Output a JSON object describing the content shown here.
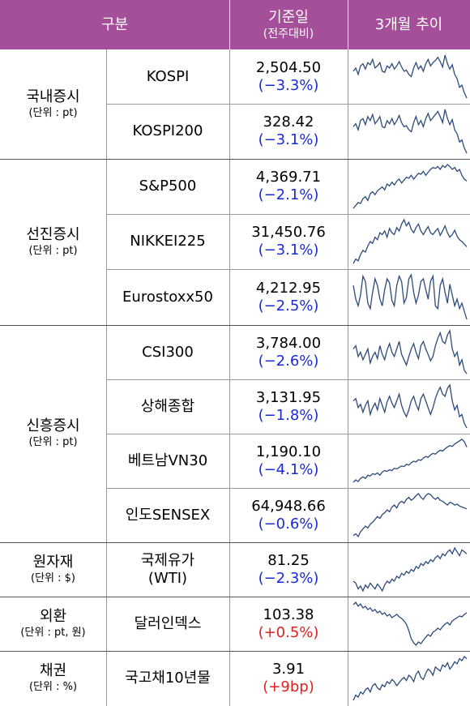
{
  "header": {
    "col_group": "구분",
    "col_value_line1": "기준일",
    "col_value_line2": "(전주대비)",
    "col_trend": "3개월 추이"
  },
  "groups": [
    {
      "title": "국내증시",
      "unit": "(단위 : pt)",
      "rows": [
        {
          "name": "KOSPI",
          "value": "2,504.50",
          "change": "(−3.3%)",
          "dir": "neg",
          "trend": [
            55,
            58,
            52,
            60,
            62,
            57,
            63,
            61,
            66,
            58,
            60,
            63,
            55,
            54,
            60,
            58,
            62,
            57,
            60,
            64,
            59,
            55,
            56,
            52,
            50,
            58,
            63,
            57,
            60,
            55,
            62,
            66,
            60,
            63,
            65,
            68,
            64,
            59,
            70,
            62,
            57,
            61,
            52,
            48,
            40,
            42,
            35,
            30
          ]
        },
        {
          "name": "KOSPI200",
          "value": "328.42",
          "change": "(−3.1%)",
          "dir": "neg",
          "trend": [
            54,
            57,
            51,
            60,
            62,
            56,
            64,
            60,
            66,
            57,
            60,
            64,
            54,
            53,
            60,
            57,
            62,
            56,
            60,
            65,
            58,
            54,
            55,
            51,
            49,
            58,
            64,
            56,
            60,
            54,
            62,
            67,
            60,
            63,
            66,
            69,
            64,
            58,
            71,
            62,
            56,
            61,
            51,
            47,
            39,
            41,
            33,
            28
          ]
        }
      ]
    },
    {
      "title": "선진증시",
      "unit": "(단위 : pt)",
      "rows": [
        {
          "name": "S&P500",
          "value": "4,369.71",
          "change": "(−2.1%)",
          "dir": "neg",
          "trend": [
            30,
            33,
            36,
            35,
            40,
            42,
            38,
            45,
            47,
            44,
            48,
            50,
            52,
            49,
            55,
            53,
            57,
            54,
            58,
            60,
            56,
            59,
            62,
            61,
            64,
            60,
            63,
            66,
            65,
            68,
            64,
            67,
            70,
            72,
            71,
            73,
            70,
            74,
            72,
            75,
            73,
            70,
            72,
            68,
            70,
            64,
            60,
            58
          ]
        },
        {
          "name": "NIKKEI225",
          "value": "31,450.76",
          "change": "(−3.1%)",
          "dir": "neg",
          "trend": [
            25,
            30,
            28,
            35,
            40,
            38,
            45,
            50,
            48,
            55,
            52,
            60,
            58,
            62,
            55,
            65,
            60,
            58,
            66,
            62,
            70,
            75,
            68,
            72,
            64,
            60,
            66,
            70,
            62,
            58,
            63,
            67,
            60,
            58,
            62,
            65,
            57,
            62,
            68,
            60,
            55,
            58,
            63,
            56,
            52,
            50,
            47,
            44
          ]
        },
        {
          "name": "Eurostoxx50",
          "value": "4,212.95",
          "change": "(−2.5%)",
          "dir": "neg",
          "trend": [
            55,
            45,
            40,
            48,
            62,
            58,
            42,
            38,
            50,
            60,
            55,
            45,
            40,
            52,
            60,
            57,
            44,
            40,
            55,
            62,
            58,
            42,
            46,
            60,
            63,
            50,
            42,
            48,
            58,
            60,
            52,
            45,
            58,
            62,
            40,
            38,
            55,
            60,
            50,
            42,
            56,
            48,
            40,
            45,
            38,
            42,
            36,
            30
          ]
        }
      ]
    },
    {
      "title": "신흥증시",
      "unit": "(단위 : pt)",
      "rows": [
        {
          "name": "CSI300",
          "value": "3,784.00",
          "change": "(−2.6%)",
          "dir": "neg",
          "trend": [
            55,
            58,
            48,
            52,
            45,
            50,
            55,
            42,
            48,
            52,
            46,
            58,
            50,
            45,
            54,
            60,
            52,
            48,
            55,
            62,
            50,
            45,
            40,
            48,
            55,
            60,
            52,
            46,
            58,
            62,
            55,
            50,
            44,
            48,
            58,
            65,
            70,
            62,
            60,
            68,
            72,
            55,
            48,
            52,
            40,
            45,
            35,
            32
          ]
        },
        {
          "name": "상해종합",
          "value": "3,131.95",
          "change": "(−1.8%)",
          "dir": "neg",
          "trend": [
            58,
            60,
            52,
            55,
            48,
            54,
            58,
            46,
            52,
            56,
            50,
            60,
            54,
            48,
            57,
            62,
            56,
            52,
            58,
            64,
            54,
            48,
            44,
            50,
            58,
            62,
            55,
            50,
            60,
            64,
            58,
            52,
            46,
            52,
            60,
            66,
            70,
            64,
            62,
            69,
            72,
            58,
            50,
            54,
            44,
            46,
            38,
            34
          ]
        },
        {
          "name": "베트남VN30",
          "value": "1,190.10",
          "change": "(−4.1%)",
          "dir": "neg",
          "trend": [
            25,
            28,
            26,
            30,
            32,
            30,
            34,
            33,
            36,
            35,
            37,
            34,
            38,
            40,
            39,
            41,
            40,
            43,
            42,
            44,
            46,
            45,
            48,
            47,
            50,
            52,
            51,
            54,
            53,
            56,
            58,
            57,
            60,
            62,
            61,
            64,
            66,
            65,
            68,
            70,
            72,
            71,
            74,
            76,
            78,
            80,
            77,
            70
          ]
        },
        {
          "name": "인도SENSEX",
          "value": "64,948.66",
          "change": "(−0.6%)",
          "dir": "neg",
          "trend": [
            28,
            30,
            27,
            32,
            35,
            38,
            36,
            40,
            42,
            45,
            48,
            46,
            50,
            52,
            55,
            53,
            58,
            60,
            57,
            62,
            64,
            62,
            66,
            68,
            65,
            67,
            70,
            72,
            68,
            66,
            70,
            72,
            71,
            68,
            66,
            68,
            65,
            64,
            62,
            60,
            63,
            62,
            60,
            61,
            59,
            58,
            57,
            56
          ]
        }
      ]
    },
    {
      "title": "원자재",
      "unit": "(단위 : $)",
      "rows": [
        {
          "name_line1": "국제유가",
          "name_line2": "(WTI)",
          "value": "81.25",
          "change": "(−2.3%)",
          "dir": "neg",
          "trend": [
            40,
            38,
            32,
            35,
            30,
            36,
            33,
            38,
            35,
            32,
            37,
            34,
            30,
            36,
            40,
            38,
            42,
            40,
            45,
            43,
            48,
            46,
            50,
            48,
            52,
            50,
            55,
            53,
            58,
            56,
            60,
            58,
            62,
            60,
            64,
            66,
            63,
            68,
            66,
            70,
            72,
            68,
            74,
            70,
            66,
            72,
            70,
            68
          ]
        }
      ]
    },
    {
      "title": "외환",
      "unit": "(단위 : pt, 원)",
      "rows": [
        {
          "name": "달러인덱스",
          "value": "103.38",
          "change": "(+0.5%)",
          "dir": "pos",
          "trend": [
            72,
            75,
            70,
            73,
            68,
            70,
            66,
            68,
            64,
            66,
            62,
            64,
            60,
            62,
            58,
            60,
            56,
            58,
            60,
            57,
            55,
            52,
            48,
            40,
            30,
            25,
            22,
            26,
            24,
            28,
            32,
            35,
            33,
            38,
            40,
            43,
            41,
            45,
            48,
            50,
            47,
            52,
            54,
            56,
            58,
            57,
            60,
            62
          ]
        }
      ]
    },
    {
      "title": "채권",
      "unit": "(단위 : %)",
      "rows": [
        {
          "name": "국고채10년물",
          "value": "3.91",
          "change": "(+9bp)",
          "dir": "pos",
          "trend": [
            30,
            35,
            33,
            38,
            36,
            40,
            42,
            38,
            44,
            46,
            42,
            40,
            45,
            43,
            48,
            46,
            50,
            48,
            44,
            47,
            50,
            52,
            49,
            54,
            52,
            48,
            55,
            58,
            52,
            50,
            56,
            60,
            58,
            54,
            62,
            60,
            58,
            64,
            62,
            66,
            60,
            63,
            67,
            65,
            70,
            68,
            72,
            70
          ]
        }
      ]
    }
  ]
}
